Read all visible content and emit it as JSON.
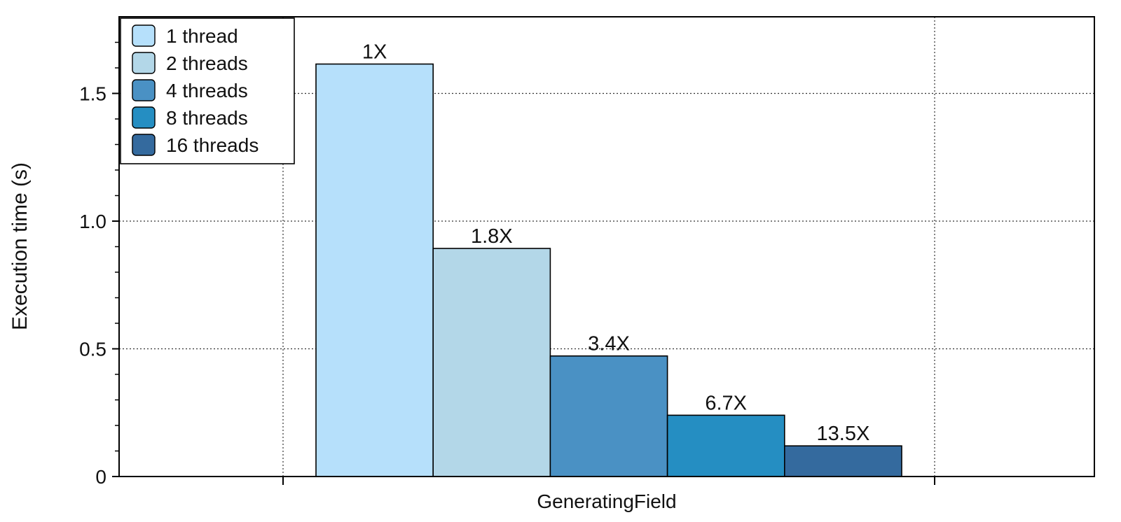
{
  "chart_data": {
    "type": "bar",
    "title": "",
    "xlabel": "",
    "ylabel": "Execution time (s)",
    "ylim": [
      0,
      1.8
    ],
    "yticks": [
      "0",
      "0.5",
      "1.0",
      "1.5"
    ],
    "categories": [
      "GeneratingField"
    ],
    "grid": true,
    "legend_position": "top-left",
    "series": [
      {
        "name": "1 thread",
        "values": [
          1.615
        ],
        "label": "1X",
        "color": "#b6e0fb"
      },
      {
        "name": "2 threads",
        "values": [
          0.893
        ],
        "label": "1.8X",
        "color": "#b3d7e8"
      },
      {
        "name": "4 threads",
        "values": [
          0.472
        ],
        "label": "3.4X",
        "color": "#4a91c4"
      },
      {
        "name": "8 threads",
        "values": [
          0.24
        ],
        "label": "6.7X",
        "color": "#258ec2"
      },
      {
        "name": "16 threads",
        "values": [
          0.12
        ],
        "label": "13.5X",
        "color": "#346a9e"
      }
    ]
  }
}
